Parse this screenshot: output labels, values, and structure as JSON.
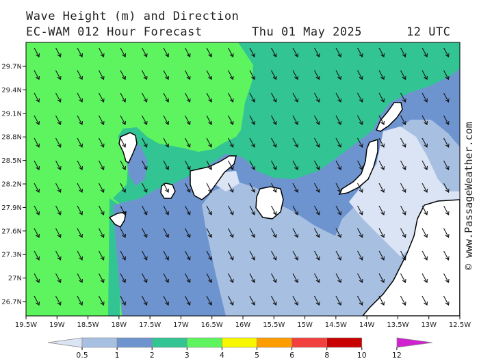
{
  "header": {
    "title": "Wave Height (m) and Direction",
    "model": "EC-WAM 012 Hour Forecast",
    "date": "Thu 01 May 2025",
    "time": "12 UTC"
  },
  "watermark": "© www.PassageWeather.com",
  "map": {
    "lat_ticks": [
      "29.7N",
      "29.4N",
      "29.1N",
      "28.8N",
      "28.5N",
      "28.2N",
      "27.9N",
      "27.6N",
      "27.3N",
      "27N",
      "26.7N"
    ],
    "lon_ticks": [
      "19.5W",
      "19W",
      "18.5W",
      "18W",
      "17.5W",
      "17W",
      "16.5W",
      "16W",
      "15.5W",
      "15W",
      "14.5W",
      "14W",
      "13.5W",
      "13W",
      "12.5W"
    ],
    "arrow_direction": "north-west to south-east",
    "colors": {
      "band_0_5_1": "#dbe4f4",
      "band_1_2": "#a7c0e2",
      "band_2_3": "#6e94d0",
      "band_3_4": "#33c494",
      "band_4_5": "#5ef45f",
      "land": "#ffffff",
      "coast": "#000000"
    }
  },
  "legend": {
    "labels": [
      "0.5",
      "1",
      "2",
      "3",
      "4",
      "5",
      "6",
      "8",
      "10",
      "12"
    ],
    "colors": [
      "#dbe4f4",
      "#a7c0e2",
      "#6e94d0",
      "#33c494",
      "#5ef45f",
      "#f7f700",
      "#ff9c00",
      "#f1403d",
      "#c80000",
      "#d020d0"
    ]
  }
}
